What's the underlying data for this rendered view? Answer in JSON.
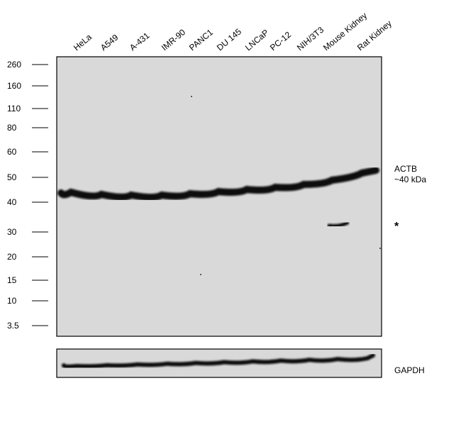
{
  "lanes": [
    "HeLa",
    "A549",
    "A-431",
    "IMR-90",
    "PANC1",
    "DU 145",
    "LNCaP",
    "PC-12",
    "NIH/3T3",
    "Mouse Kidney",
    "Rat Kidney"
  ],
  "markers": [
    "260",
    "160",
    "110",
    "80",
    "60",
    "50",
    "40",
    "30",
    "20",
    "15",
    "10",
    "3.5"
  ],
  "annotations": {
    "target": "ACTB",
    "size": "~40 kDa",
    "nonspecific": "*",
    "loading_control": "GAPDH"
  }
}
